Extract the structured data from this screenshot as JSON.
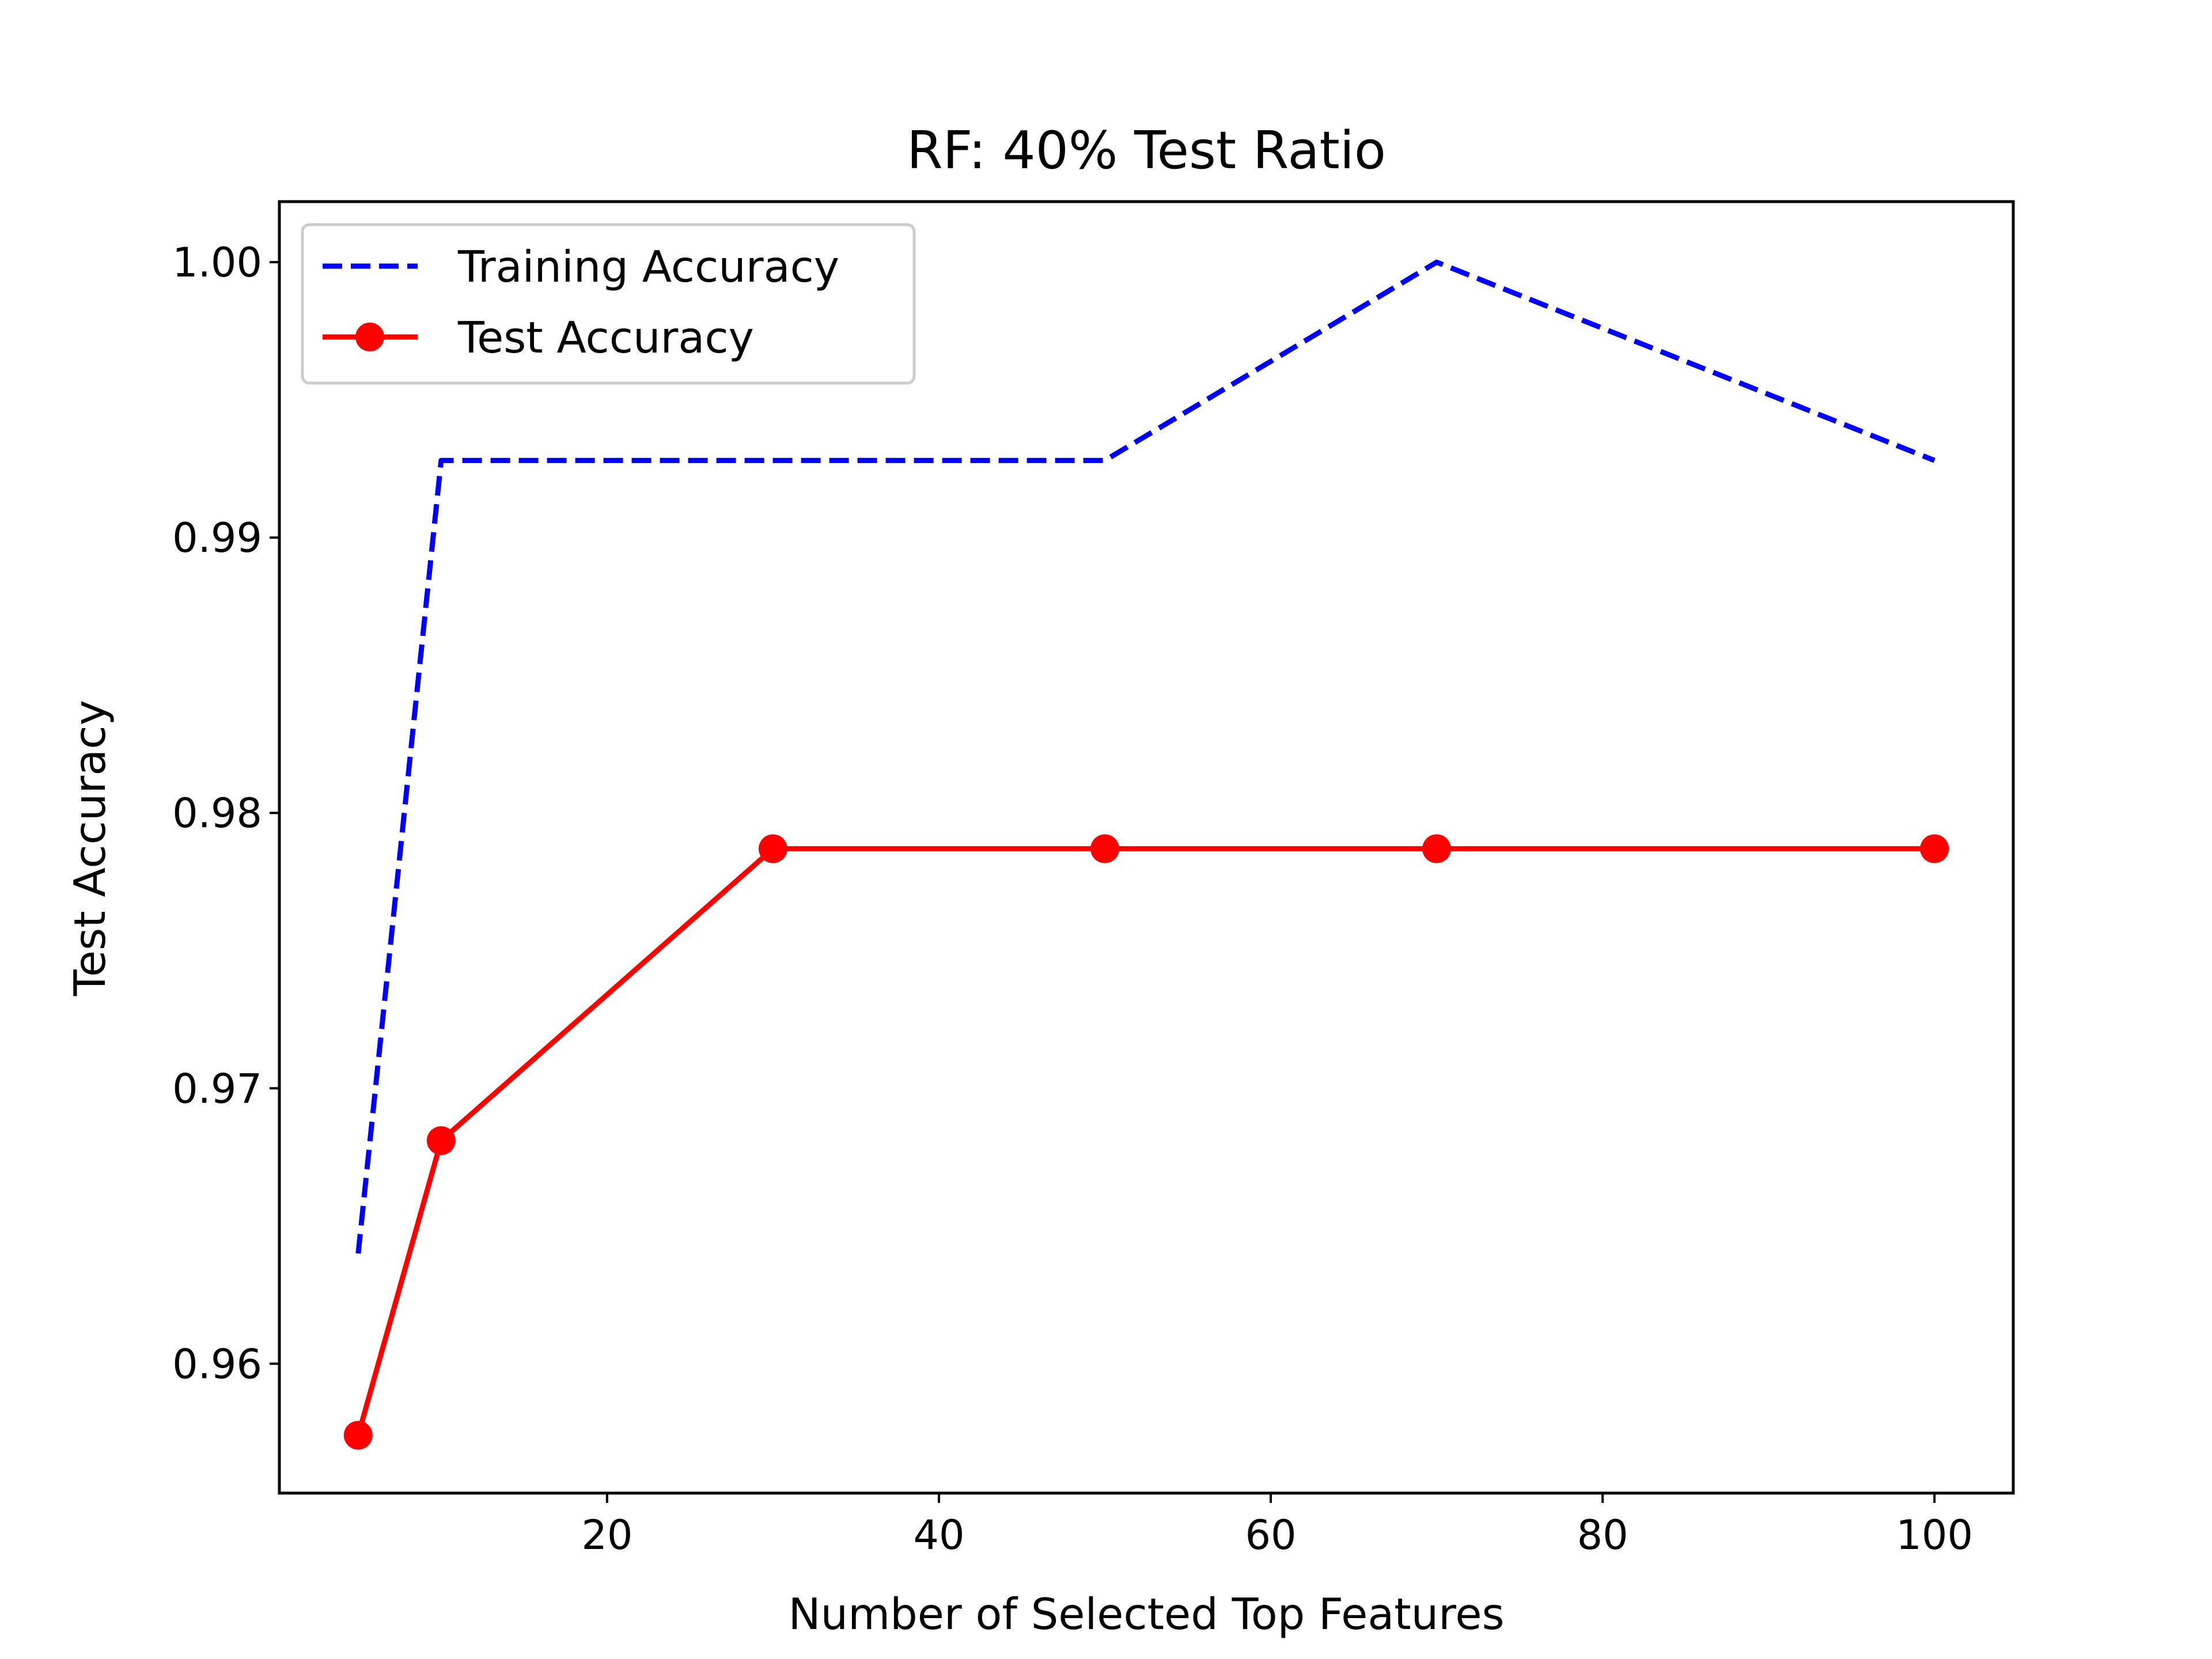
{
  "chart_data": {
    "type": "line",
    "title": "RF: 40% Test Ratio",
    "xlabel": "Number of Selected Top Features",
    "ylabel": "Test Accuracy",
    "x": [
      5,
      10,
      30,
      50,
      70,
      100
    ],
    "series": [
      {
        "name": "Training Accuracy",
        "values": [
          0.964,
          0.9928,
          0.9928,
          0.9928,
          1.0,
          0.9928
        ],
        "color": "#0000ff",
        "style": "dashed",
        "marker": "none"
      },
      {
        "name": "Test Accuracy",
        "values": [
          0.9574,
          0.9681,
          0.9787,
          0.9787,
          0.9787,
          0.9787
        ],
        "color": "#ff0000",
        "style": "solid",
        "marker": "circle"
      }
    ],
    "xlim": [
      0.25,
      104.75
    ],
    "ylim": [
      0.9553,
      1.0022
    ],
    "xticks": [
      20,
      40,
      60,
      80,
      100
    ],
    "xtick_labels": [
      "20",
      "40",
      "60",
      "80",
      "100"
    ],
    "yticks": [
      0.96,
      0.97,
      0.98,
      0.99,
      1.0
    ],
    "ytick_labels": [
      "0.96",
      "0.97",
      "0.98",
      "0.99",
      "1.00"
    ],
    "legend_position": "top-left",
    "grid": false
  }
}
